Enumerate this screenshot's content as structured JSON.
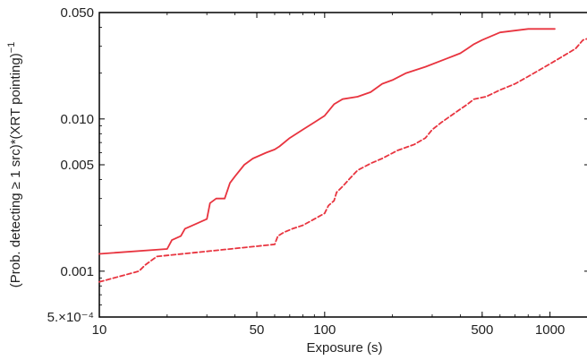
{
  "chart_data": {
    "type": "line",
    "xlabel": "Exposure (s)",
    "ylabel_main": "(Prob. detecting ≥ 1 src)*(XRT pointing)",
    "ylabel_sup": "−1",
    "x_scale": "log",
    "y_scale": "log",
    "xlim": [
      10,
      1500
    ],
    "ylim": [
      0.0005,
      0.05
    ],
    "grid": false,
    "x_ticks": [
      {
        "value": 10,
        "label": "10"
      },
      {
        "value": 50,
        "label": "50"
      },
      {
        "value": 100,
        "label": "100"
      },
      {
        "value": 500,
        "label": "500"
      },
      {
        "value": 1000,
        "label": "1000"
      }
    ],
    "y_ticks": [
      {
        "value": 0.0005,
        "label": "5.×10⁻⁴"
      },
      {
        "value": 0.001,
        "label": "0.001"
      },
      {
        "value": 0.005,
        "label": "0.005"
      },
      {
        "value": 0.01,
        "label": "0.010"
      },
      {
        "value": 0.05,
        "label": "0.050"
      }
    ],
    "series": [
      {
        "style": "solid",
        "color": "#e8343f",
        "x": [
          10,
          20,
          21,
          23,
          24,
          26,
          30,
          31,
          33,
          36,
          38,
          40,
          44,
          48,
          55,
          60,
          63,
          70,
          80,
          90,
          100,
          110,
          120,
          140,
          160,
          180,
          200,
          230,
          280,
          350,
          400,
          430,
          460,
          500,
          600,
          800,
          1050
        ],
        "y": [
          0.0013,
          0.0014,
          0.0016,
          0.0017,
          0.0019,
          0.002,
          0.0022,
          0.0028,
          0.003,
          0.003,
          0.0038,
          0.0042,
          0.005,
          0.0055,
          0.006,
          0.0063,
          0.0066,
          0.0075,
          0.0085,
          0.0095,
          0.0105,
          0.0125,
          0.0135,
          0.014,
          0.015,
          0.017,
          0.018,
          0.02,
          0.022,
          0.025,
          0.027,
          0.029,
          0.031,
          0.033,
          0.037,
          0.039,
          0.039
        ]
      },
      {
        "style": "dashed",
        "color": "#e8343f",
        "x": [
          10,
          15,
          16,
          18,
          60,
          62,
          66,
          72,
          80,
          85,
          90,
          100,
          104,
          110,
          113,
          120,
          130,
          140,
          160,
          180,
          210,
          250,
          280,
          300,
          330,
          380,
          430,
          460,
          520,
          600,
          700,
          800,
          900,
          1000,
          1200,
          1300,
          1400,
          1500
        ],
        "y": [
          0.00085,
          0.001,
          0.0011,
          0.00125,
          0.0015,
          0.0017,
          0.0018,
          0.0019,
          0.002,
          0.0021,
          0.0022,
          0.0024,
          0.0027,
          0.0029,
          0.0033,
          0.0036,
          0.0041,
          0.0046,
          0.0051,
          0.0055,
          0.0062,
          0.0068,
          0.0075,
          0.0085,
          0.0095,
          0.011,
          0.0125,
          0.0135,
          0.014,
          0.0155,
          0.017,
          0.019,
          0.021,
          0.023,
          0.027,
          0.029,
          0.033,
          0.034
        ]
      }
    ]
  }
}
